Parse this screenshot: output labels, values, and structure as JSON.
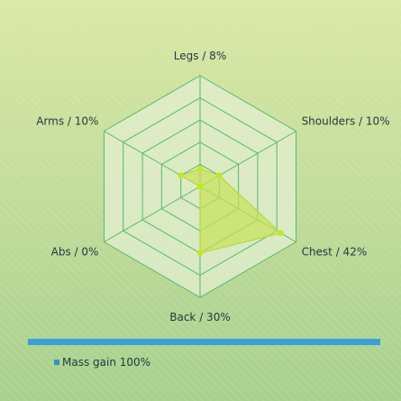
{
  "chart_data": {
    "type": "radar",
    "title": "",
    "categories": [
      "Legs",
      "Shoulders",
      "Chest",
      "Back",
      "Abs",
      "Arms"
    ],
    "category_labels": [
      "Legs / 8%",
      "Shoulders / 10%",
      "Chest / 42%",
      "Back / 30%",
      "Abs / 0%",
      "Arms / 10%"
    ],
    "series": [
      {
        "name": "Mass gain",
        "legend_label": "Mass gain 100%",
        "values": [
          8,
          10,
          42,
          30,
          0,
          10
        ]
      }
    ],
    "rmax": 50,
    "rings": 5,
    "legend_position": "bottom-left",
    "grid": true
  },
  "colors": {
    "bg_top": "#dbe8a6",
    "bg_bottom": "#a8d08e",
    "grid_stroke": "#58b86a",
    "grid_fill": "#e3efd2",
    "series_fill": "#c7e15a",
    "series_stroke": "#b6d93a",
    "point": "#c7e623",
    "legend_bar": "#3aa0d8",
    "legend_swatch": "#3a8fd0"
  }
}
